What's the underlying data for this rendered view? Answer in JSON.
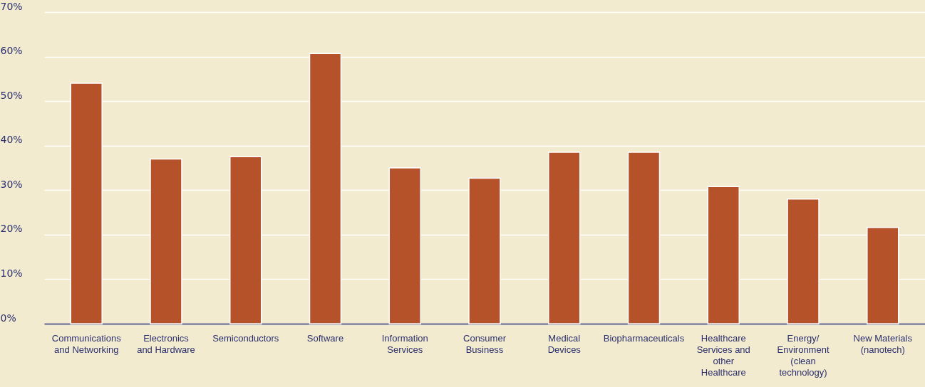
{
  "chart_data": {
    "type": "bar",
    "categories": [
      "Communications and Networking",
      "Electronics and Hardware",
      "Semiconductors",
      "Software",
      "Information Services",
      "Consumer Business",
      "Medical Devices",
      "Biopharmaceuticals",
      "Healthcare Services and other Healthcare",
      "Energy/ Environment (clean technology)",
      "New Materials (nanotech)"
    ],
    "values": [
      54,
      37,
      37.5,
      60.7,
      35,
      32.7,
      38.5,
      38.5,
      30.8,
      28,
      21.6
    ],
    "color": "#b5522a",
    "ylim": [
      0,
      70
    ],
    "yticks": [
      {
        "value": 0,
        "label": "0%"
      },
      {
        "value": 10,
        "label": "10%"
      },
      {
        "value": 20,
        "label": "20%"
      },
      {
        "value": 30,
        "label": "30%"
      },
      {
        "value": 40,
        "label": "40%"
      },
      {
        "value": 50,
        "label": "50%"
      },
      {
        "value": 60,
        "label": "60%"
      },
      {
        "value": 70,
        "label": "70%"
      }
    ],
    "grid": "y"
  }
}
